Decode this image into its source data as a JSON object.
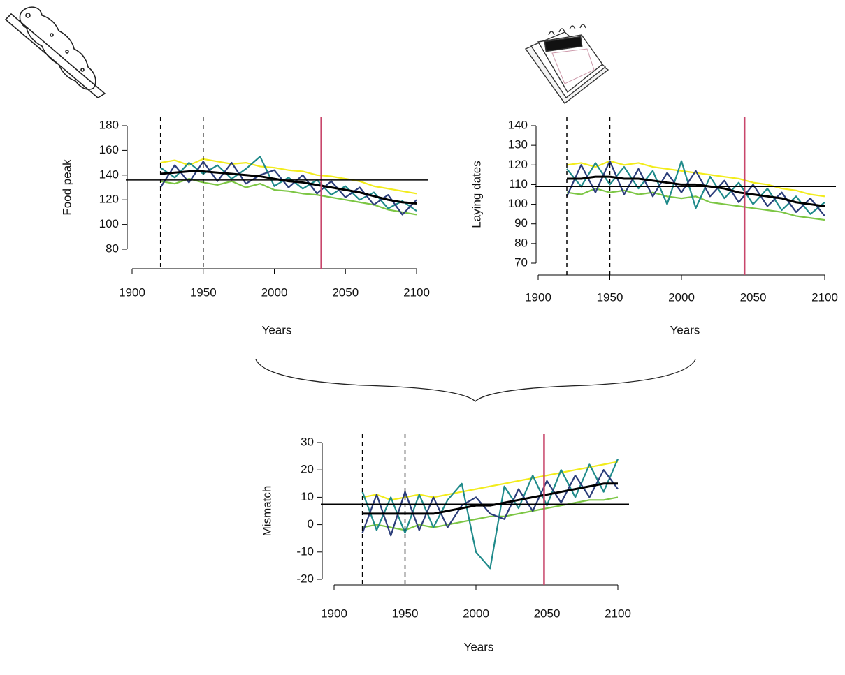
{
  "chart_data": [
    {
      "type": "line",
      "y_label": "Food peak",
      "x_label": "Years",
      "x": [
        1920,
        1930,
        1940,
        1950,
        1960,
        1970,
        1980,
        1990,
        2000,
        2010,
        2020,
        2030,
        2040,
        2050,
        2060,
        2070,
        2080,
        2090,
        2100
      ],
      "series": [
        {
          "color": "#f2ec1c",
          "values": [
            150,
            152,
            148,
            153,
            151,
            149,
            150,
            147,
            146,
            144,
            143,
            140,
            139,
            137,
            135,
            131,
            129,
            127,
            125
          ]
        },
        {
          "color": "#7cc644",
          "values": [
            135,
            133,
            137,
            134,
            132,
            135,
            130,
            133,
            128,
            127,
            125,
            124,
            122,
            120,
            118,
            116,
            112,
            110,
            108
          ]
        },
        {
          "color": "#1f8a8a",
          "values": [
            146,
            138,
            150,
            141,
            148,
            137,
            145,
            155,
            131,
            138,
            129,
            136,
            124,
            131,
            120,
            126,
            113,
            119,
            111
          ]
        },
        {
          "color": "#2b3d7a",
          "values": [
            130,
            148,
            134,
            151,
            135,
            150,
            133,
            140,
            144,
            130,
            140,
            125,
            135,
            122,
            130,
            116,
            124,
            108,
            120
          ]
        },
        {
          "color": "#000000",
          "values": [
            141,
            142,
            143,
            143,
            142,
            141,
            140,
            139,
            137,
            135,
            134,
            132,
            130,
            128,
            126,
            123,
            120,
            118,
            117
          ]
        }
      ],
      "xlim": [
        1900,
        2100
      ],
      "xticks": [
        1900,
        1950,
        2000,
        2050,
        2100
      ],
      "ylim": [
        80,
        180
      ],
      "yticks": [
        80,
        100,
        120,
        140,
        160,
        180
      ],
      "reference_x": [
        1920,
        1950
      ],
      "marker_x": 2033,
      "marker_color": "#c8466b",
      "hline": 136
    },
    {
      "type": "line",
      "y_label": "Laying dates",
      "x_label": "Years",
      "x": [
        1920,
        1930,
        1940,
        1950,
        1960,
        1970,
        1980,
        1990,
        2000,
        2010,
        2020,
        2030,
        2040,
        2050,
        2060,
        2070,
        2080,
        2090,
        2100
      ],
      "series": [
        {
          "color": "#f2ec1c",
          "values": [
            120,
            121,
            119,
            122,
            120,
            121,
            119,
            118,
            117,
            116,
            115,
            114,
            113,
            111,
            110,
            108,
            107,
            105,
            104
          ]
        },
        {
          "color": "#7cc644",
          "values": [
            106,
            105,
            108,
            106,
            107,
            105,
            106,
            104,
            103,
            104,
            101,
            100,
            99,
            98,
            97,
            96,
            94,
            93,
            92
          ]
        },
        {
          "color": "#1f8a8a",
          "values": [
            118,
            109,
            121,
            110,
            119,
            108,
            117,
            100,
            122,
            98,
            114,
            103,
            111,
            100,
            108,
            97,
            104,
            95,
            101
          ]
        },
        {
          "color": "#2b3d7a",
          "values": [
            104,
            120,
            106,
            122,
            105,
            118,
            104,
            116,
            106,
            117,
            104,
            112,
            101,
            110,
            99,
            106,
            96,
            103,
            94
          ]
        },
        {
          "color": "#000000",
          "values": [
            113,
            113,
            114,
            114,
            113,
            113,
            112,
            111,
            110,
            110,
            109,
            108,
            106,
            105,
            104,
            103,
            101,
            100,
            99
          ]
        }
      ],
      "xlim": [
        1900,
        2100
      ],
      "xticks": [
        1900,
        1950,
        2000,
        2050,
        2100
      ],
      "ylim": [
        70,
        140
      ],
      "yticks": [
        70,
        80,
        90,
        100,
        110,
        120,
        130,
        140
      ],
      "reference_x": [
        1920,
        1950
      ],
      "marker_x": 2044,
      "marker_color": "#c8466b",
      "hline": 109
    },
    {
      "type": "line",
      "y_label": "Mismatch",
      "x_label": "Years",
      "x": [
        1920,
        1930,
        1940,
        1950,
        1960,
        1970,
        1980,
        1990,
        2000,
        2010,
        2020,
        2030,
        2040,
        2050,
        2060,
        2070,
        2080,
        2090,
        2100
      ],
      "series": [
        {
          "color": "#f2ec1c",
          "values": [
            10,
            11,
            9,
            10,
            11,
            10,
            11,
            12,
            13,
            14,
            15,
            16,
            17,
            18,
            19,
            20,
            21,
            22,
            23
          ]
        },
        {
          "color": "#7cc644",
          "values": [
            -1,
            0,
            -1,
            -2,
            0,
            -1,
            0,
            1,
            2,
            3,
            3,
            4,
            5,
            6,
            7,
            8,
            9,
            9,
            10
          ]
        },
        {
          "color": "#1f8a8a",
          "values": [
            12,
            -2,
            10,
            -3,
            11,
            -1,
            9,
            15,
            -10,
            -16,
            14,
            6,
            18,
            7,
            20,
            10,
            22,
            12,
            24
          ]
        },
        {
          "color": "#2b3d7a",
          "values": [
            -3,
            11,
            -4,
            12,
            -2,
            10,
            -1,
            7,
            10,
            4,
            2,
            13,
            5,
            16,
            8,
            18,
            10,
            20,
            13
          ]
        },
        {
          "color": "#000000",
          "values": [
            4,
            4,
            4,
            4,
            4,
            4,
            5,
            6,
            7,
            7,
            8,
            9,
            10,
            11,
            12,
            13,
            14,
            15,
            15
          ]
        }
      ],
      "xlim": [
        1900,
        2100
      ],
      "xticks": [
        1900,
        1950,
        2000,
        2050,
        2100
      ],
      "ylim": [
        -20,
        30
      ],
      "yticks": [
        -20,
        -10,
        0,
        10,
        20,
        30
      ],
      "reference_x": [
        1920,
        1950
      ],
      "marker_x": 2048,
      "marker_color": "#c8466b",
      "hline": 7.5
    }
  ]
}
